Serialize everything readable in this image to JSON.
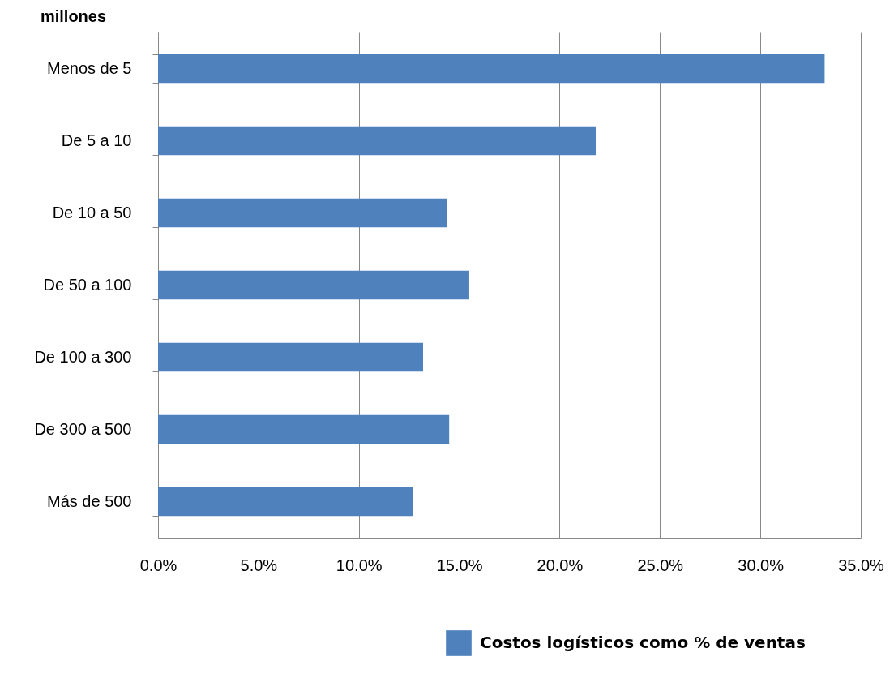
{
  "chart_data": {
    "type": "bar",
    "orientation": "horizontal",
    "ylabel": "millones",
    "categories": [
      "Menos de 5",
      "De 5 a 10",
      "De 10 a 50",
      "De 50 a 100",
      "De 100 a 300",
      "De 300 a 500",
      "Más de 500"
    ],
    "series": [
      {
        "name": "Costos logísticos como % de ventas",
        "color": "#4f81bd",
        "values": [
          33.2,
          21.8,
          14.4,
          15.5,
          13.2,
          14.5,
          12.7
        ]
      }
    ],
    "xlim": [
      0,
      35
    ],
    "xticks": [
      {
        "value": 0,
        "label": "0.0%"
      },
      {
        "value": 5,
        "label": "5.0%"
      },
      {
        "value": 10,
        "label": "10.0%"
      },
      {
        "value": 15,
        "label": "15.0%"
      },
      {
        "value": 20,
        "label": "20.0%"
      },
      {
        "value": 25,
        "label": "25.0%"
      },
      {
        "value": 30,
        "label": "30.0%"
      },
      {
        "value": 35,
        "label": "35.0%"
      }
    ],
    "grid": "x",
    "legend": "bottom"
  }
}
